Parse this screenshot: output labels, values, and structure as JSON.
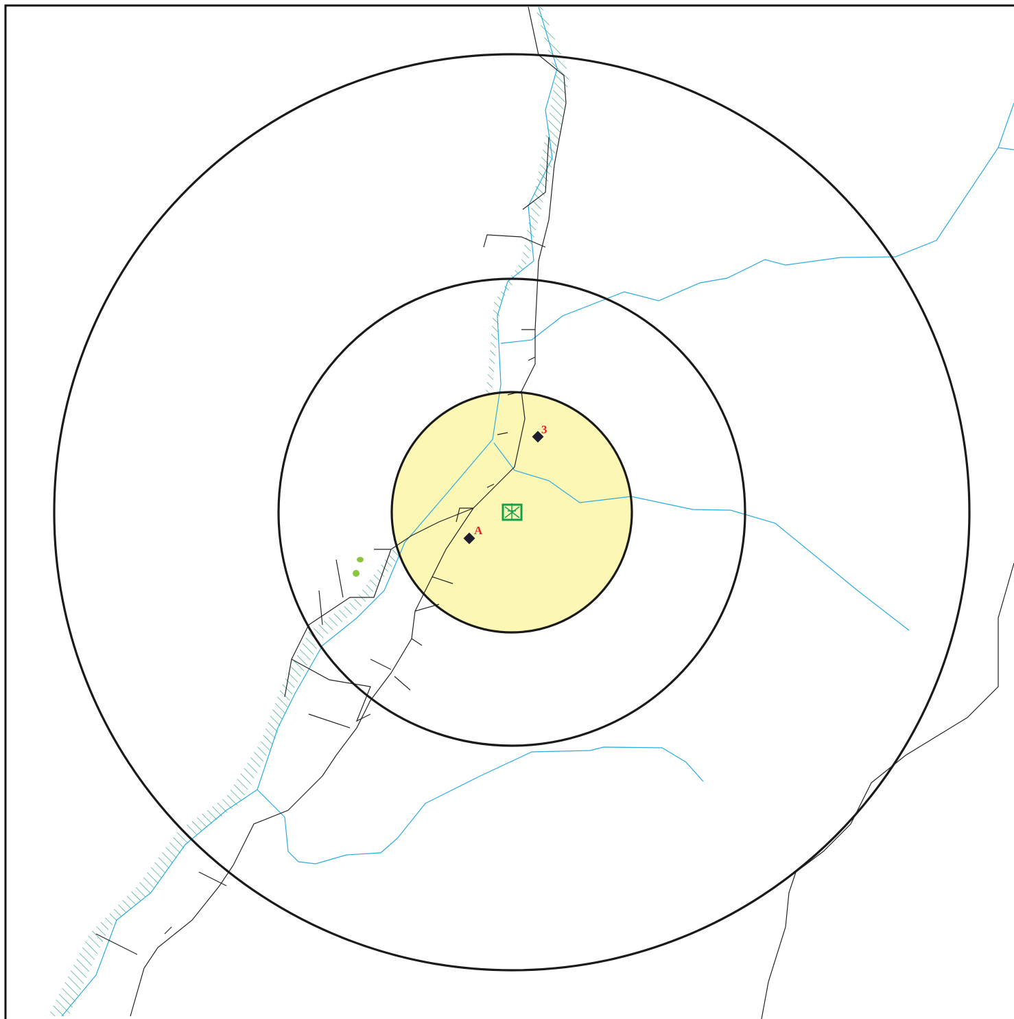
{
  "markers": [
    {
      "label": "3"
    },
    {
      "label": "A"
    }
  ]
}
